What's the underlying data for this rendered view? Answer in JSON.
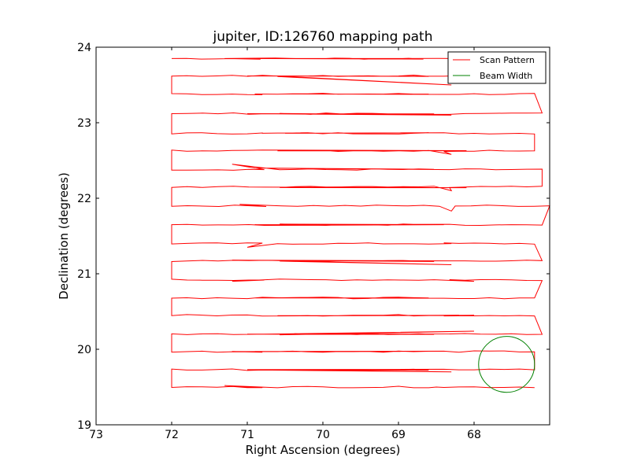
{
  "chart_data": {
    "type": "line",
    "title": "jupiter, ID:126760 mapping path",
    "xlabel": "Right Ascension (degrees)",
    "ylabel": "Declination (degrees)",
    "xlim": [
      73,
      67.0
    ],
    "ylim": [
      19,
      24
    ],
    "x_inverted": true,
    "grid": false,
    "legend_position": "upper right",
    "xticks": [
      73,
      72,
      71,
      70,
      69,
      68
    ],
    "xtick_labels": [
      "73",
      "72",
      "71",
      "70",
      "69",
      "68"
    ],
    "yticks": [
      19,
      20,
      21,
      22,
      23,
      24
    ],
    "ytick_labels": [
      "19",
      "20",
      "21",
      "22",
      "23",
      "24"
    ],
    "series": [
      {
        "name": "Scan Pattern",
        "color": "#ff0000",
        "rows": [
          {
            "y": 23.85,
            "x_start": 72.0,
            "x_end": 67.3,
            "wiggle": [
              [
                71.3,
                23.85
              ],
              [
                71.0,
                23.85
              ]
            ]
          },
          {
            "y": 23.62,
            "x_start": 72.0,
            "x_end": 67.2,
            "wiggle": [
              [
                71.0,
                23.62
              ],
              [
                68.3,
                23.5
              ]
            ]
          },
          {
            "y": 23.38,
            "x_start": 72.0,
            "x_end": 67.2,
            "wiggle": [
              [
                70.9,
                23.38
              ],
              [
                70.5,
                23.38
              ]
            ]
          },
          {
            "y": 23.12,
            "x_start": 72.0,
            "x_end": 67.1,
            "wiggle": [
              [
                71.0,
                23.12
              ],
              [
                68.3,
                23.1
              ]
            ]
          },
          {
            "y": 22.86,
            "x_start": 72.0,
            "x_end": 67.2,
            "wiggle": [
              [
                70.8,
                22.86
              ],
              [
                70.5,
                22.86
              ]
            ]
          },
          {
            "y": 22.63,
            "x_start": 72.0,
            "x_end": 67.2,
            "wiggle": [
              [
                68.3,
                22.58
              ],
              [
                68.1,
                22.63
              ]
            ]
          },
          {
            "y": 22.38,
            "x_start": 72.0,
            "x_end": 67.1,
            "wiggle": [
              [
                71.2,
                22.45
              ],
              [
                70.9,
                22.4
              ]
            ]
          },
          {
            "y": 22.15,
            "x_start": 72.0,
            "x_end": 67.1,
            "wiggle": [
              [
                68.3,
                22.1
              ],
              [
                68.1,
                22.14
              ]
            ]
          },
          {
            "y": 21.9,
            "x_start": 72.0,
            "x_end": 67.0,
            "wiggle": [
              [
                71.1,
                21.92
              ],
              [
                68.3,
                21.83
              ]
            ]
          },
          {
            "y": 21.65,
            "x_start": 72.0,
            "x_end": 67.1,
            "wiggle": [
              [
                70.9,
                21.65
              ],
              [
                68.4,
                21.65
              ]
            ]
          },
          {
            "y": 21.4,
            "x_start": 72.0,
            "x_end": 67.2,
            "wiggle": [
              [
                71.0,
                21.35
              ],
              [
                68.3,
                21.4
              ]
            ]
          },
          {
            "y": 21.17,
            "x_start": 72.0,
            "x_end": 67.1,
            "wiggle": [
              [
                71.2,
                21.18
              ],
              [
                68.3,
                21.12
              ]
            ]
          },
          {
            "y": 20.92,
            "x_start": 72.0,
            "x_end": 67.1,
            "wiggle": [
              [
                71.2,
                20.9
              ],
              [
                68.0,
                20.9
              ]
            ]
          },
          {
            "y": 20.68,
            "x_start": 72.0,
            "x_end": 67.2,
            "wiggle": [
              [
                70.9,
                20.68
              ],
              [
                70.5,
                20.68
              ]
            ]
          },
          {
            "y": 20.45,
            "x_start": 72.0,
            "x_end": 67.2,
            "wiggle": [
              [
                68.2,
                20.45
              ],
              [
                68.0,
                20.45
              ]
            ]
          },
          {
            "y": 20.2,
            "x_start": 72.0,
            "x_end": 67.1,
            "wiggle": [
              [
                71.0,
                20.2
              ],
              [
                68.0,
                20.24
              ]
            ]
          },
          {
            "y": 19.97,
            "x_start": 72.0,
            "x_end": 67.2,
            "wiggle": [
              [
                71.2,
                19.97
              ],
              [
                70.9,
                19.97
              ]
            ]
          },
          {
            "y": 19.73,
            "x_start": 72.0,
            "x_end": 67.2,
            "wiggle": [
              [
                71.0,
                19.73
              ],
              [
                68.3,
                19.7
              ]
            ]
          },
          {
            "y": 19.5,
            "x_start": 72.0,
            "x_end": 67.2,
            "wiggle": [
              [
                71.3,
                19.52
              ],
              [
                68.5,
                19.5
              ]
            ]
          }
        ]
      },
      {
        "name": "Beam Width",
        "color": "#008000",
        "center": [
          67.57,
          19.8
        ],
        "radius_deg": 0.37
      }
    ]
  }
}
